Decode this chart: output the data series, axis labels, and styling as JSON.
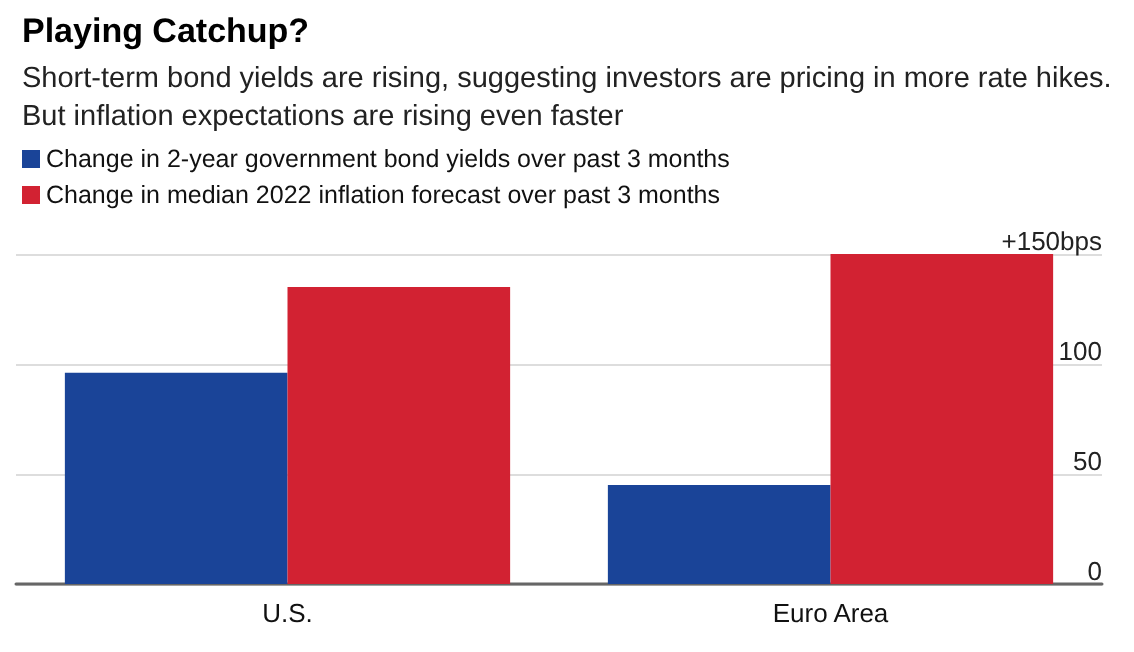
{
  "chart_data": {
    "type": "bar",
    "title": "Playing Catchup?",
    "subtitle": "Short-term bond yields are rising, suggesting investors are pricing in more rate hikes. But inflation expectations are rising even faster",
    "categories": [
      "U.S.",
      "Euro Area"
    ],
    "series": [
      {
        "name": "Change in 2-year government bond yields over past 3 months",
        "color": "#1a4498",
        "values": [
          96,
          45
        ]
      },
      {
        "name": "Change in median 2022 inflation forecast over past 3 months",
        "color": "#d22232",
        "values": [
          135,
          150
        ]
      }
    ],
    "ylim": [
      0,
      150
    ],
    "yticks": [
      0,
      50,
      100,
      {
        "value": 150,
        "label": "+150bps"
      }
    ],
    "grid": "y",
    "legend": "top left"
  }
}
